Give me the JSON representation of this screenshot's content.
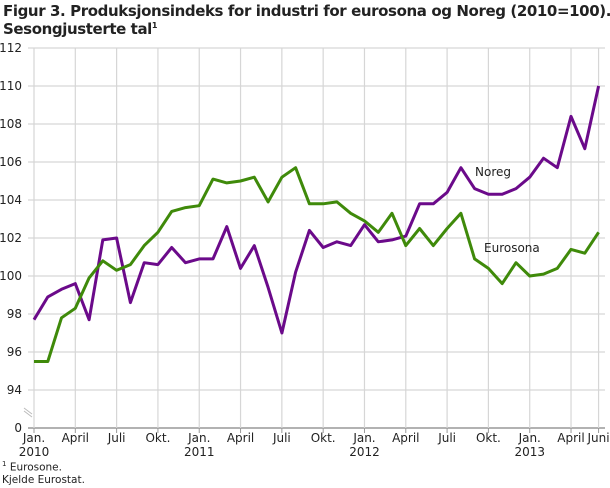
{
  "chart_data": {
    "type": "line",
    "title_line1": "Figur 3. Produksjonsindeks for industri for eurosona og Noreg (2010=100).",
    "title_line2": "Sesongjusterte tal",
    "title_sup": "1",
    "xlabel": "",
    "ylabel": "",
    "ylim": [
      92,
      112
    ],
    "y_axis_break": true,
    "y_ticks": [
      "112",
      "110",
      "108",
      "106",
      "104",
      "102",
      "100",
      "98",
      "96",
      "94",
      "0"
    ],
    "x_ticks": [
      {
        "label": "Jan.",
        "year": "2010",
        "month": 0
      },
      {
        "label": "April",
        "year": "",
        "month": 3
      },
      {
        "label": "Juli",
        "year": "",
        "month": 6
      },
      {
        "label": "Okt.",
        "year": "",
        "month": 9
      },
      {
        "label": "Jan.",
        "year": "2011",
        "month": 12
      },
      {
        "label": "April",
        "year": "",
        "month": 15
      },
      {
        "label": "Juli",
        "year": "",
        "month": 18
      },
      {
        "label": "Okt.",
        "year": "",
        "month": 21
      },
      {
        "label": "Jan.",
        "year": "2012",
        "month": 24
      },
      {
        "label": "April",
        "year": "",
        "month": 27
      },
      {
        "label": "Juli",
        "year": "",
        "month": 30
      },
      {
        "label": "Okt.",
        "year": "",
        "month": 33
      },
      {
        "label": "Jan.",
        "year": "2013",
        "month": 36
      },
      {
        "label": "April",
        "year": "",
        "month": 39
      },
      {
        "label": "Juni",
        "year": "",
        "month": 41
      }
    ],
    "x_range": [
      "2010-01",
      "2013-06"
    ],
    "grid": true,
    "series": [
      {
        "name": "Noreg",
        "color": "#6b0a8a",
        "values": [
          97.7,
          98.9,
          99.3,
          99.6,
          97.7,
          101.9,
          102.0,
          98.6,
          100.7,
          100.6,
          101.5,
          100.7,
          100.9,
          100.9,
          102.6,
          100.4,
          101.6,
          99.4,
          97.0,
          100.2,
          102.4,
          101.5,
          101.8,
          101.6,
          102.7,
          101.8,
          101.9,
          102.1,
          103.8,
          103.8,
          104.4,
          105.7,
          104.6,
          104.3,
          104.3,
          104.6,
          105.2,
          106.2,
          105.7,
          108.4,
          106.7,
          110.0
        ]
      },
      {
        "name": "Eurosona",
        "color": "#3f8a0a",
        "values": [
          95.5,
          95.5,
          97.8,
          98.3,
          99.9,
          100.8,
          100.3,
          100.6,
          101.6,
          102.3,
          103.4,
          103.6,
          103.7,
          105.1,
          104.9,
          105.0,
          105.2,
          103.9,
          105.2,
          105.7,
          103.8,
          103.8,
          103.9,
          103.3,
          102.9,
          102.3,
          103.3,
          101.6,
          102.5,
          101.6,
          102.5,
          103.3,
          100.9,
          100.4,
          99.6,
          100.7,
          100.0,
          100.1,
          100.4,
          101.4,
          101.2,
          102.3
        ]
      }
    ],
    "legend": "inline labels"
  },
  "footnotes": {
    "note1_sup": "1",
    "note1": "Eurosone.",
    "source": "Kjelde Eurostat."
  }
}
